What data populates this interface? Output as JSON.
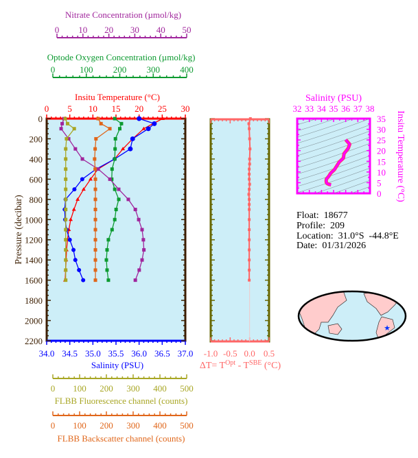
{
  "colors": {
    "temperature": "#ff0000",
    "salinity": "#0000ff",
    "nitrate": "#a0259c",
    "oxygen": "#0c9a30",
    "fluorescence": "#a8a624",
    "backscatter": "#e0661a",
    "pressure_axis": "#3c1e00",
    "delta_t": "#ff6666",
    "delta_axis": "#666600",
    "ts": "#ff00ff",
    "plot_bg": "#cdeef8",
    "land": "#ffcccc"
  },
  "info": {
    "float": "Float:  18677",
    "profile": "Profile:  209",
    "location": "Location:  31.0°S  -44.8°E",
    "date": "Date:  01/31/2026"
  },
  "chart_data": [
    {
      "type": "line",
      "ylabel": "Pressure (decibar)",
      "ylim": [
        2200,
        0
      ],
      "yticks": [
        "0",
        "200",
        "400",
        "600",
        "800",
        "1000",
        "1200",
        "1400",
        "1600",
        "1800",
        "2000",
        "2200"
      ],
      "pressure": [
        0,
        50,
        100,
        200,
        300,
        400,
        500,
        600,
        700,
        800,
        900,
        1000,
        1100,
        1200,
        1300,
        1400,
        1500,
        1600
      ],
      "axes": {
        "nitrate": {
          "label": "Nitrate Concentration (µmol/kg)",
          "range": [
            0,
            50
          ],
          "ticks": [
            "0",
            "10",
            "20",
            "30",
            "40",
            "50"
          ]
        },
        "oxygen": {
          "label": "Optode Oxygen Concentration (µmol/kg)",
          "range": [
            0,
            400
          ],
          "ticks": [
            "0",
            "100",
            "200",
            "300",
            "400"
          ]
        },
        "temperature": {
          "label": "Insitu Temperature (°C)",
          "range": [
            0,
            30
          ],
          "ticks": [
            "0",
            "5",
            "10",
            "15",
            "20",
            "25",
            "30"
          ]
        },
        "salinity": {
          "label": "Salinity (PSU)",
          "range": [
            34.0,
            37.0
          ],
          "ticks": [
            "34.0",
            "34.5",
            "35.0",
            "35.5",
            "36.0",
            "36.5",
            "37.0"
          ]
        },
        "fluorescence": {
          "label": "FLBB Fluorescence channel (counts)",
          "range": [
            0,
            500
          ],
          "ticks": [
            "0",
            "100",
            "200",
            "300",
            "400",
            "500"
          ]
        },
        "backscatter": {
          "label": "FLBB Backscatter channel (counts)",
          "range": [
            0,
            500
          ],
          "ticks": [
            "0",
            "100",
            "200",
            "300",
            "400",
            "500"
          ]
        }
      },
      "series": [
        {
          "key": "temperature",
          "values": [
            25.1,
            23,
            21,
            18.6,
            16.5,
            14.7,
            11.1,
            9.5,
            8.0,
            6.7,
            5.9,
            5.2,
            4.8,
            4.5,
            4.3,
            4.2,
            4.1,
            4.0
          ]
        },
        {
          "key": "salinity",
          "values": [
            36.0,
            36.33,
            36.2,
            35.86,
            35.81,
            35.47,
            35.07,
            34.77,
            34.6,
            34.41,
            34.39,
            34.4,
            34.43,
            34.5,
            34.58,
            34.62,
            34.7,
            34.79
          ]
        },
        {
          "key": "oxygen",
          "values": [
            185,
            205,
            200,
            187,
            186,
            185,
            177,
            176,
            185,
            197,
            189,
            185,
            177,
            166,
            162,
            160,
            162,
            166
          ]
        },
        {
          "key": "nitrate",
          "values": [
            2.7,
            2.0,
            1.6,
            4.5,
            7.1,
            9.8,
            15.9,
            20.4,
            23.8,
            27.5,
            30.2,
            31.5,
            32.8,
            33.3,
            33.5,
            32.8,
            31.7,
            30.2
          ]
        },
        {
          "key": "fluorescence",
          "values": [
            46,
            55,
            80,
            51,
            48,
            48,
            48,
            48,
            48,
            48,
            48,
            48,
            48,
            48,
            48,
            48,
            48,
            48
          ]
        },
        {
          "key": "backscatter",
          "values": [
            169,
            180,
            213,
            161,
            158,
            156,
            158,
            159,
            159,
            159,
            159,
            159,
            159,
            159,
            159,
            159,
            159,
            159
          ]
        }
      ]
    },
    {
      "type": "scatter",
      "xlabel": "ΔT= T",
      "xlabel_sup1": "Opt",
      "xlabel_mid": " - T",
      "xlabel_sup2": "SBE",
      "xlabel_end": " (°C)",
      "xlim": [
        -1.0,
        0.5
      ],
      "xticks": [
        "-1.0",
        "-0.5",
        "0.0",
        "0.5"
      ],
      "ylim": [
        2200,
        0
      ],
      "pressure": [
        0,
        50,
        100,
        200,
        300,
        400,
        450,
        500,
        550,
        600,
        650,
        700,
        750,
        800,
        850,
        900,
        1000,
        1100,
        1200,
        1300,
        1400,
        1500,
        1600
      ],
      "values": [
        0.02,
        -0.02,
        -0.01,
        0.0,
        0.01,
        0.0,
        0.0,
        -0.01,
        -0.01,
        -0.01,
        0.0,
        -0.01,
        -0.02,
        -0.01,
        -0.01,
        -0.01,
        -0.01,
        -0.01,
        -0.01,
        -0.01,
        -0.01,
        -0.01,
        -0.01
      ]
    },
    {
      "type": "line",
      "title": "Salinity (PSU)",
      "ylabel": "Insitu Temperature (°C)",
      "xlim": [
        32,
        38
      ],
      "ylim": [
        0,
        35
      ],
      "xticks": [
        "32",
        "33",
        "34",
        "35",
        "36",
        "37",
        "38"
      ],
      "yticks": [
        "0",
        "5",
        "10",
        "15",
        "20",
        "25",
        "30",
        "35"
      ],
      "salinity": [
        36.0,
        36.33,
        36.2,
        35.86,
        35.81,
        35.47,
        35.07,
        34.77,
        34.6,
        34.41,
        34.39,
        34.4,
        34.43,
        34.5,
        34.58,
        34.62,
        34.7,
        34.79
      ],
      "temperature": [
        25.1,
        23,
        21,
        18.6,
        16.5,
        14.7,
        11.1,
        9.5,
        8.0,
        6.7,
        5.9,
        5.2,
        4.8,
        4.5,
        4.3,
        4.2,
        4.1,
        4.0
      ]
    }
  ]
}
